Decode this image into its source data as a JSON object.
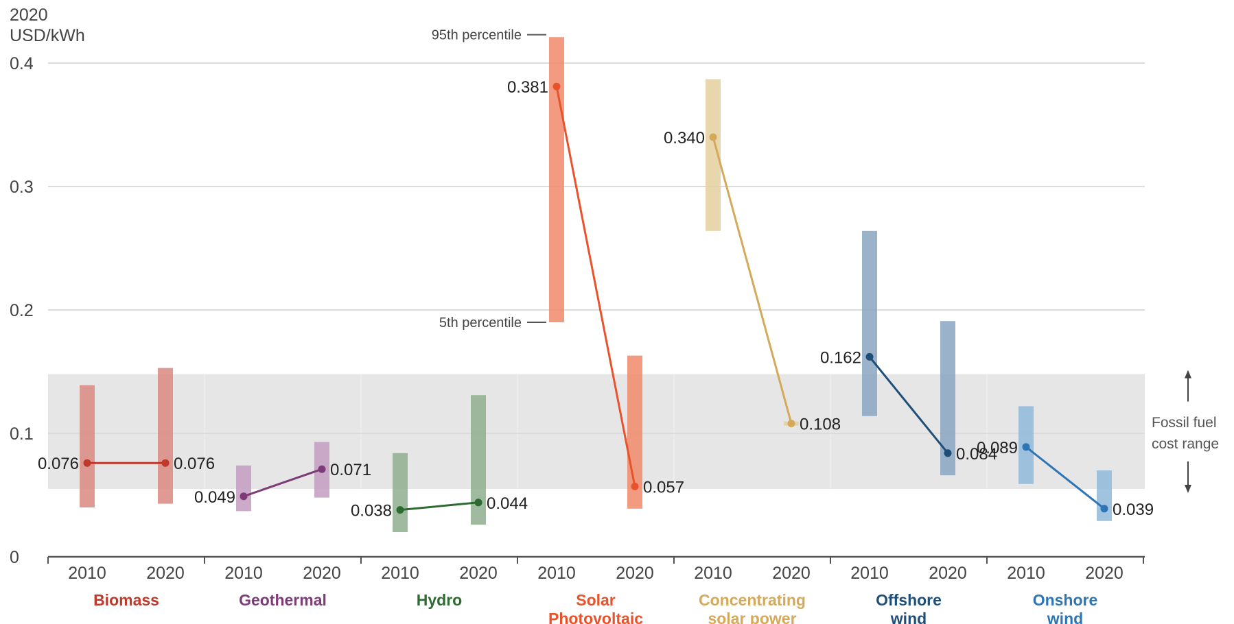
{
  "chart_data": {
    "type": "range-dumbbell",
    "ylabel_lines": [
      "2020",
      "USD/kWh"
    ],
    "ylim": [
      0,
      0.4
    ],
    "yticks": [
      "0",
      "0.1",
      "0.2",
      "0.3",
      "0.4"
    ],
    "ytick_values": [
      0,
      0.1,
      0.2,
      0.3,
      0.4
    ],
    "x_years": [
      "2010",
      "2020"
    ],
    "band": {
      "low": 0.055,
      "high": 0.148,
      "label_lines": [
        "Fossil fuel",
        "cost range"
      ],
      "color": "#e6e6e6"
    },
    "percentile_labels": {
      "high": "95th percentile",
      "low": "5th percentile"
    },
    "series": [
      {
        "name_lines": [
          "Biomass"
        ],
        "color": "#c0392b",
        "range_color": "#d98880",
        "ranges": [
          [
            0.04,
            0.139
          ],
          [
            0.043,
            0.153
          ]
        ],
        "values": [
          0.076,
          0.076
        ],
        "labels": [
          "0.076",
          "0.076"
        ]
      },
      {
        "name_lines": [
          "Geothermal"
        ],
        "color": "#7d3c78",
        "range_color": "#c39bbf",
        "ranges": [
          [
            0.037,
            0.074
          ],
          [
            0.048,
            0.093
          ]
        ],
        "values": [
          0.049,
          0.071
        ],
        "labels": [
          "0.049",
          "0.071"
        ]
      },
      {
        "name_lines": [
          "Hydro"
        ],
        "color": "#2e6b30",
        "range_color": "#8fae8f",
        "ranges": [
          [
            0.02,
            0.084
          ],
          [
            0.026,
            0.131
          ]
        ],
        "values": [
          0.038,
          0.044
        ],
        "labels": [
          "0.038",
          "0.044"
        ]
      },
      {
        "name_lines": [
          "Solar",
          "Photovoltaic"
        ],
        "color": "#e8532c",
        "range_color": "#f08a6a",
        "ranges": [
          [
            0.19,
            0.421
          ],
          [
            0.039,
            0.163
          ]
        ],
        "values": [
          0.381,
          0.057
        ],
        "labels": [
          "0.381",
          "0.057"
        ]
      },
      {
        "name_lines": [
          "Concentrating",
          "solar power"
        ],
        "color": "#d4a95a",
        "range_color": "#e4cf9f",
        "ranges": [
          [
            0.264,
            0.387
          ],
          [
            0.108,
            0.108
          ]
        ],
        "values": [
          0.34,
          0.108
        ],
        "labels": [
          "0.340",
          "0.108"
        ]
      },
      {
        "name_lines": [
          "Offshore",
          "wind"
        ],
        "color": "#1f4e79",
        "range_color": "#8aa6c1",
        "ranges": [
          [
            0.114,
            0.264
          ],
          [
            0.066,
            0.191
          ]
        ],
        "values": [
          0.162,
          0.084
        ],
        "labels": [
          "0.162",
          "0.084"
        ]
      },
      {
        "name_lines": [
          "Onshore",
          "wind"
        ],
        "color": "#2e75b6",
        "range_color": "#8fb8da",
        "ranges": [
          [
            0.059,
            0.122
          ],
          [
            0.029,
            0.07
          ]
        ],
        "values": [
          0.089,
          0.039
        ],
        "labels": [
          "0.089",
          "0.039"
        ]
      }
    ]
  }
}
